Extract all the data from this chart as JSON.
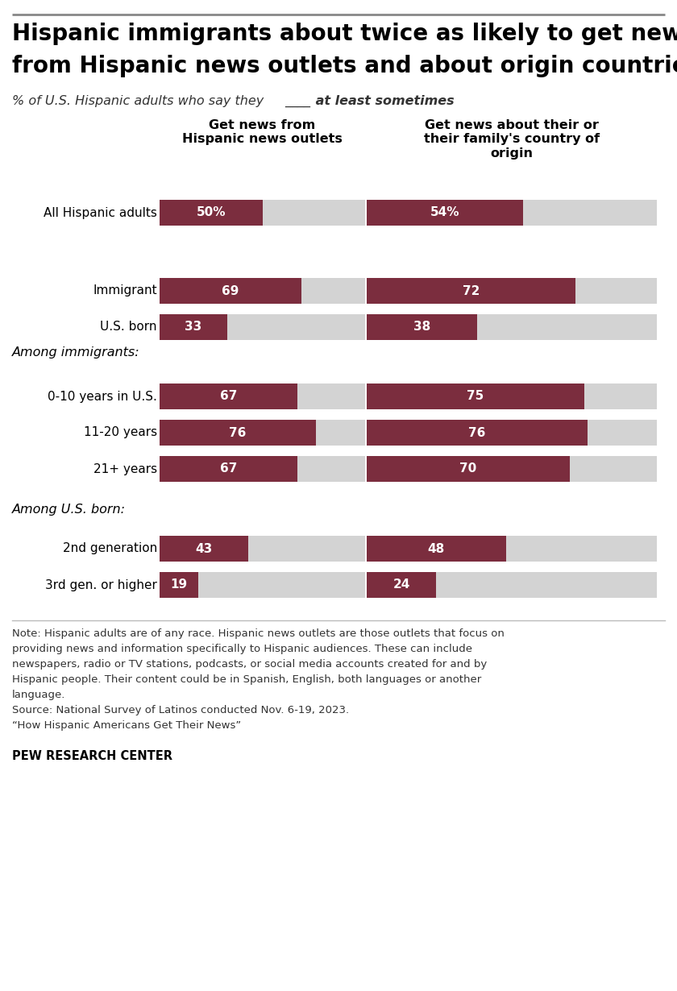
{
  "title_line1": "Hispanic immigrants about twice as likely to get news",
  "title_line2": "from Hispanic news outlets and about origin countries",
  "col1_header": "Get news from\nHispanic news outlets",
  "col2_header": "Get news about their or\ntheir family's country of\norigin",
  "bar_color": "#7B2D3E",
  "bg_color": "#D3D3D3",
  "rows": [
    {
      "label": "All Hispanic adults",
      "v1": 50,
      "v2": 54,
      "label1": "50%",
      "label2": "54%",
      "indent": false
    },
    {
      "label": "Immigrant",
      "v1": 69,
      "v2": 72,
      "label1": "69",
      "label2": "72",
      "indent": true
    },
    {
      "label": "U.S. born",
      "v1": 33,
      "v2": 38,
      "label1": "33",
      "label2": "38",
      "indent": true
    },
    {
      "label": "0-10 years in U.S.",
      "v1": 67,
      "v2": 75,
      "label1": "67",
      "label2": "75",
      "indent": false
    },
    {
      "label": "11-20 years",
      "v1": 76,
      "v2": 76,
      "label1": "76",
      "label2": "76",
      "indent": false
    },
    {
      "label": "21+ years",
      "v1": 67,
      "v2": 70,
      "label1": "67",
      "label2": "70",
      "indent": false
    },
    {
      "label": "2nd generation",
      "v1": 43,
      "v2": 48,
      "label1": "43",
      "label2": "48",
      "indent": false
    },
    {
      "label": "3rd gen. or higher",
      "v1": 19,
      "v2": 24,
      "label1": "19",
      "label2": "24",
      "indent": false
    }
  ],
  "section_label_immigrant": "Among immigrants:",
  "section_label_usborn": "Among U.S. born:",
  "note_lines": [
    "Note: Hispanic adults are of any race. Hispanic news outlets are those outlets that focus on",
    "providing news and information specifically to Hispanic audiences. These can include",
    "newspapers, radio or TV stations, podcasts, or social media accounts created for and by",
    "Hispanic people. Their content could be in Spanish, English, both languages or another",
    "language.",
    "Source: National Survey of Latinos conducted Nov. 6-19, 2023.",
    "“How Hispanic Americans Get Their News”"
  ],
  "pew": "PEW RESEARCH CENTER",
  "top_line_color": "#888888"
}
